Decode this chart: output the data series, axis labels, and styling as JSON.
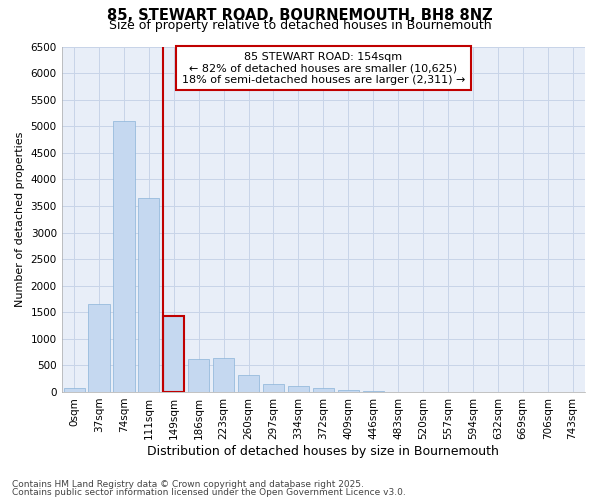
{
  "title1": "85, STEWART ROAD, BOURNEMOUTH, BH8 8NZ",
  "title2": "Size of property relative to detached houses in Bournemouth",
  "xlabel": "Distribution of detached houses by size in Bournemouth",
  "ylabel": "Number of detached properties",
  "categories": [
    "0sqm",
    "37sqm",
    "74sqm",
    "111sqm",
    "149sqm",
    "186sqm",
    "223sqm",
    "260sqm",
    "297sqm",
    "334sqm",
    "372sqm",
    "409sqm",
    "446sqm",
    "483sqm",
    "520sqm",
    "557sqm",
    "594sqm",
    "632sqm",
    "669sqm",
    "706sqm",
    "743sqm"
  ],
  "values": [
    70,
    1650,
    5100,
    3650,
    1430,
    620,
    630,
    315,
    155,
    110,
    70,
    35,
    15,
    5,
    3,
    2,
    1,
    1,
    0,
    0,
    0
  ],
  "bar_color": "#c5d8f0",
  "bar_edge_color": "#8ab4d8",
  "highlight_bar_index": 4,
  "highlight_bar_edge_color": "#c00000",
  "vline_color": "#c00000",
  "annotation_text": "85 STEWART ROAD: 154sqm\n← 82% of detached houses are smaller (10,625)\n18% of semi-detached houses are larger (2,311) →",
  "annotation_box_color": "#ffffff",
  "annotation_box_edge_color": "#c00000",
  "ylim": [
    0,
    6500
  ],
  "yticks": [
    0,
    500,
    1000,
    1500,
    2000,
    2500,
    3000,
    3500,
    4000,
    4500,
    5000,
    5500,
    6000,
    6500
  ],
  "footer1": "Contains HM Land Registry data © Crown copyright and database right 2025.",
  "footer2": "Contains public sector information licensed under the Open Government Licence v3.0.",
  "bg_color": "#ffffff",
  "plot_bg_color": "#e8eef8",
  "grid_color": "#c8d4e8",
  "title1_fontsize": 10.5,
  "title2_fontsize": 9,
  "xlabel_fontsize": 9,
  "ylabel_fontsize": 8,
  "tick_fontsize": 7.5,
  "annotation_fontsize": 8,
  "footer_fontsize": 6.5
}
